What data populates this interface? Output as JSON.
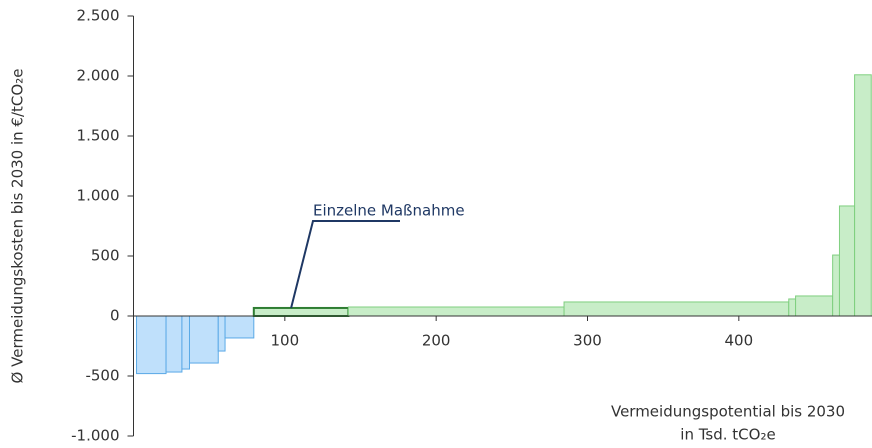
{
  "chart_data": {
    "type": "step-bar",
    "ylabel": "Ø Vermeidungskosten bis 2030 in €/tCO₂e",
    "xlabel": [
      "Vermeidungspotential bis 2030",
      "in Tsd. tCO₂e"
    ],
    "x_edges": [
      2,
      21.5,
      32,
      37,
      56,
      60.5,
      79.5,
      142,
      284.5,
      433,
      437.5,
      462,
      466.5,
      476.5,
      487.5
    ],
    "values": [
      -480,
      -467,
      -442,
      -392,
      -292,
      -183,
      67,
      75,
      117,
      142,
      167,
      508,
      917,
      2010
    ],
    "negative_color": {
      "fill": "#bfe0fb",
      "stroke": "#5aa9e6"
    },
    "positive_color": {
      "fill": "#c8edc8",
      "stroke": "#7fcf7f"
    },
    "annotation": {
      "text": "Einzelne Maßnahme",
      "bar_index": 6,
      "color": "#1f3864",
      "highlight": "#2e7d32"
    },
    "xlim": [
      0,
      488
    ],
    "ylim": [
      -1000,
      2500
    ],
    "xticks": [
      100,
      200,
      300,
      400
    ],
    "yticks": [
      {
        "value": -1000,
        "label": "-1.000"
      },
      -500,
      0,
      500,
      {
        "value": 1000,
        "label": "1.000"
      },
      {
        "value": 1500,
        "label": "1.500"
      },
      {
        "value": 2000,
        "label": "2.000"
      },
      {
        "value": 2500,
        "label": "2.500"
      }
    ]
  }
}
